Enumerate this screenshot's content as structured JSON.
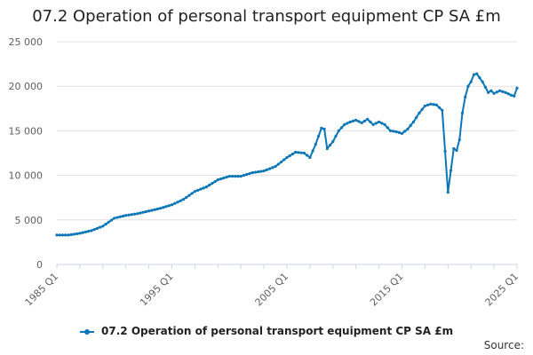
{
  "title": "07.2 Operation of personal transport equipment CP SA £m",
  "legend_label": "07.2 Operation of personal transport equipment CP SA £m",
  "source_label": "Source:",
  "colors": {
    "series": "#0b76b8",
    "grid": "#e0e0e0",
    "axis": "#ccd6eb",
    "tick_text": "#606060"
  },
  "chart_data": {
    "type": "line",
    "title": "07.2 Operation of personal transport equipment CP SA £m",
    "xlabel": "",
    "ylabel": "",
    "x_ticks": [
      "1985 Q1",
      "1995 Q1",
      "2005 Q1",
      "2015 Q1",
      "2025 Q1"
    ],
    "x_range": [
      1985.0,
      2025.0
    ],
    "ylim": [
      0,
      25000
    ],
    "y_ticks": [
      0,
      5000,
      10000,
      15000,
      20000,
      25000
    ],
    "y_tick_labels": [
      "0",
      "5 000",
      "10 000",
      "15 000",
      "20 000",
      "25 000"
    ],
    "grid": true,
    "legend": "bottom",
    "series": [
      {
        "name": "07.2 Operation of personal transport equipment CP SA £m",
        "x": [
          1985.0,
          1986.0,
          1987.0,
          1988.0,
          1989.0,
          1990.0,
          1991.0,
          1992.0,
          1993.0,
          1994.0,
          1995.0,
          1996.0,
          1997.0,
          1998.0,
          1999.0,
          2000.0,
          2001.0,
          2002.0,
          2003.0,
          2004.0,
          2005.0,
          2005.75,
          2006.5,
          2007.0,
          2007.5,
          2008.0,
          2008.25,
          2008.5,
          2009.0,
          2009.5,
          2010.0,
          2010.5,
          2011.0,
          2011.5,
          2012.0,
          2012.5,
          2013.0,
          2013.5,
          2014.0,
          2014.5,
          2015.0,
          2015.5,
          2016.0,
          2016.5,
          2017.0,
          2017.5,
          2018.0,
          2018.5,
          2019.0,
          2019.5,
          2019.75,
          2020.0,
          2020.25,
          2020.5,
          2020.75,
          2021.0,
          2021.25,
          2021.5,
          2022.0,
          2022.5,
          2022.75,
          2023.0,
          2023.5,
          2024.0,
          2024.5,
          2024.75,
          2025.0
        ],
        "values": [
          3300,
          3300,
          3500,
          3800,
          4300,
          5200,
          5500,
          5700,
          6000,
          6300,
          6700,
          7300,
          8200,
          8700,
          9500,
          9900,
          9900,
          10300,
          10500,
          11000,
          12000,
          12600,
          12500,
          12000,
          13500,
          15300,
          15200,
          13000,
          13800,
          15000,
          15700,
          16000,
          16200,
          15900,
          16300,
          15700,
          16000,
          15700,
          15000,
          14900,
          14700,
          15200,
          16000,
          17000,
          17800,
          18000,
          17900,
          17300,
          8100,
          13000,
          12800,
          14000,
          17000,
          18800,
          20000,
          20500,
          21300,
          21400,
          20500,
          19300,
          19500,
          19200,
          19500,
          19300,
          19000,
          18900,
          19800
        ]
      }
    ]
  }
}
